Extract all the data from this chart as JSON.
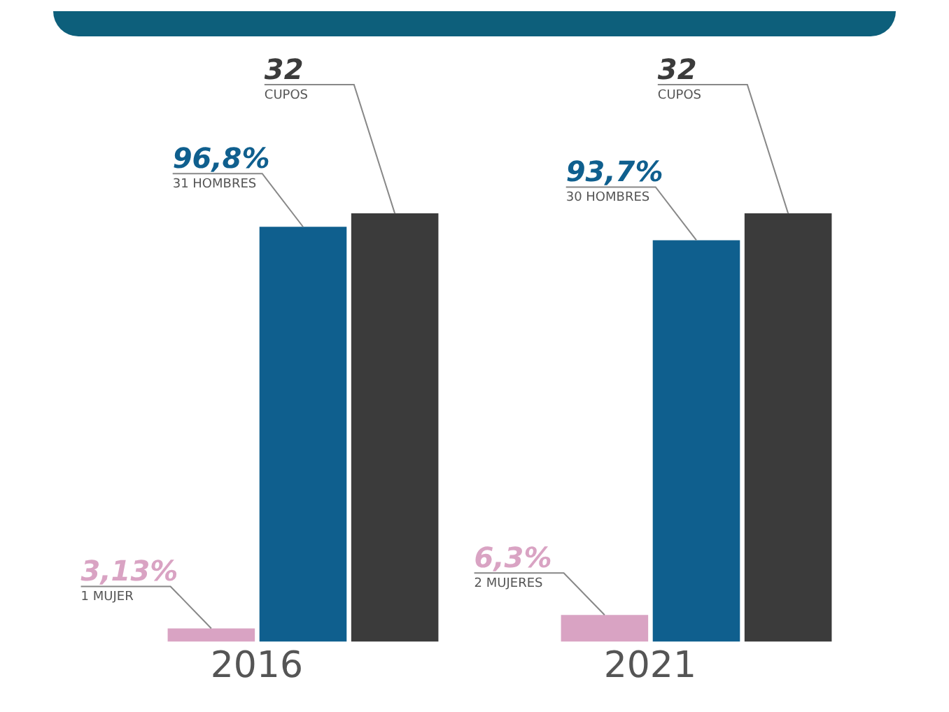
{
  "chart_data": {
    "type": "bar",
    "categories": [
      "2016",
      "2021"
    ],
    "series": [
      {
        "color": "#d9a3c3",
        "values": [
          1,
          2
        ],
        "value_labels": [
          "3,13%\n1 MUJER",
          "6,3%\n2 MUJERES"
        ]
      },
      {
        "color": "#0f5f8e",
        "values": [
          31,
          30
        ],
        "value_labels": [
          "96,8%\n31 HOMBRES",
          "93,7%\n30 HOMBRES"
        ]
      },
      {
        "color": "#3b3b3b",
        "values": [
          32,
          32
        ],
        "value_labels": [
          "32\nCUPOS",
          "32\nCUPOS"
        ]
      }
    ],
    "grid": false,
    "legend": false
  }
}
